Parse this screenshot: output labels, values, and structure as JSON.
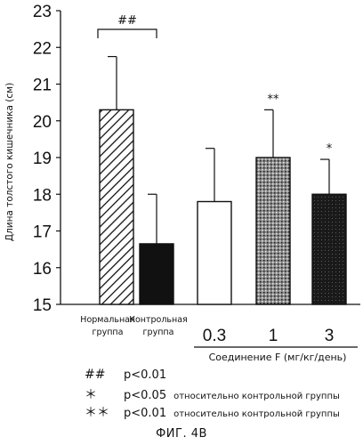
{
  "chart_data": {
    "type": "bar",
    "ylabel": "Длина толстого кишечника (см)",
    "ylim": [
      15,
      23
    ],
    "yticks": [
      15,
      16,
      17,
      18,
      19,
      20,
      21,
      22,
      23
    ],
    "grid": false,
    "categories": [
      {
        "label": [
          "Нормальная",
          "группа"
        ],
        "value": 20.3,
        "error": 1.45,
        "fill": "hatch",
        "sig": "##"
      },
      {
        "label": [
          "Контрольная",
          "группа"
        ],
        "value": 16.65,
        "error": 1.35,
        "fill": "black",
        "sig": ""
      },
      {
        "label": [
          "0.3"
        ],
        "value": 17.8,
        "error": 1.45,
        "fill": "white",
        "sig": ""
      },
      {
        "label": [
          "1"
        ],
        "value": 19.0,
        "error": 1.3,
        "fill": "stipple",
        "sig": "**"
      },
      {
        "label": [
          "3"
        ],
        "value": 18.0,
        "error": 0.95,
        "fill": "dark-stipple",
        "sig": "*"
      }
    ],
    "dose_group_title": "Соединение F (мг/кг/день)"
  },
  "legend": [
    {
      "symbol": "##",
      "p": "p<0.01",
      "desc": ""
    },
    {
      "symbol": "＊",
      "p": "p<0.05",
      "desc": "относительно контрольной группы"
    },
    {
      "symbol": "＊＊",
      "p": "p<0.01",
      "desc": "относительно контрольной группы"
    }
  ],
  "caption": "ФИГ. 4В"
}
